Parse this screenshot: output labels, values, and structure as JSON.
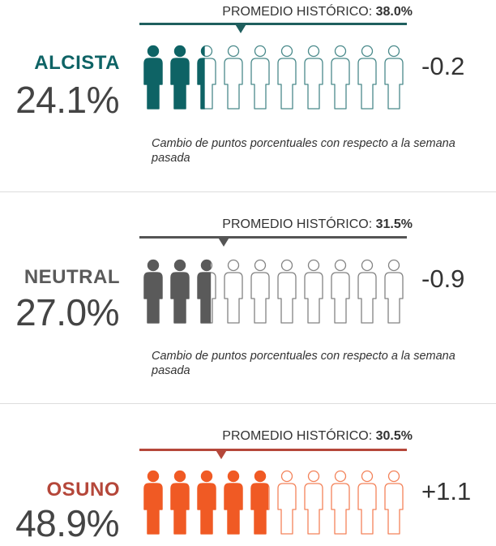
{
  "chart_data": {
    "type": "pictogram",
    "icons_total": 10,
    "rows": [
      {
        "name": "ALCISTA",
        "value": 24.1,
        "value_label": "24.1%",
        "historical_label": "PROMEDIO HISTÓRICO:",
        "historical_value": 38.0,
        "historical_value_label": "38.0%",
        "change_label": "-0.2",
        "note": "Cambio de puntos porcentuales con respecto a la semana pasada",
        "color": "#0e6365",
        "line_color": "#1f5f5e"
      },
      {
        "name": "NEUTRAL",
        "value": 27.0,
        "value_label": "27.0%",
        "historical_label": "PROMEDIO HISTÓRICO:",
        "historical_value": 31.5,
        "historical_value_label": "31.5%",
        "change_label": "-0.9",
        "note": "Cambio de puntos porcentuales con respecto a la semana pasada",
        "color": "#5a5a5a",
        "line_color": "#555555"
      },
      {
        "name": "OSUNO",
        "value": 48.9,
        "value_label": "48.9%",
        "historical_label": "PROMEDIO HISTÓRICO:",
        "historical_value": 30.5,
        "historical_value_label": "30.5%",
        "change_label": "+1.1",
        "note": "",
        "color": "#f05a24",
        "line_color": "#b5473a",
        "name_color": "#b5473a"
      }
    ]
  }
}
